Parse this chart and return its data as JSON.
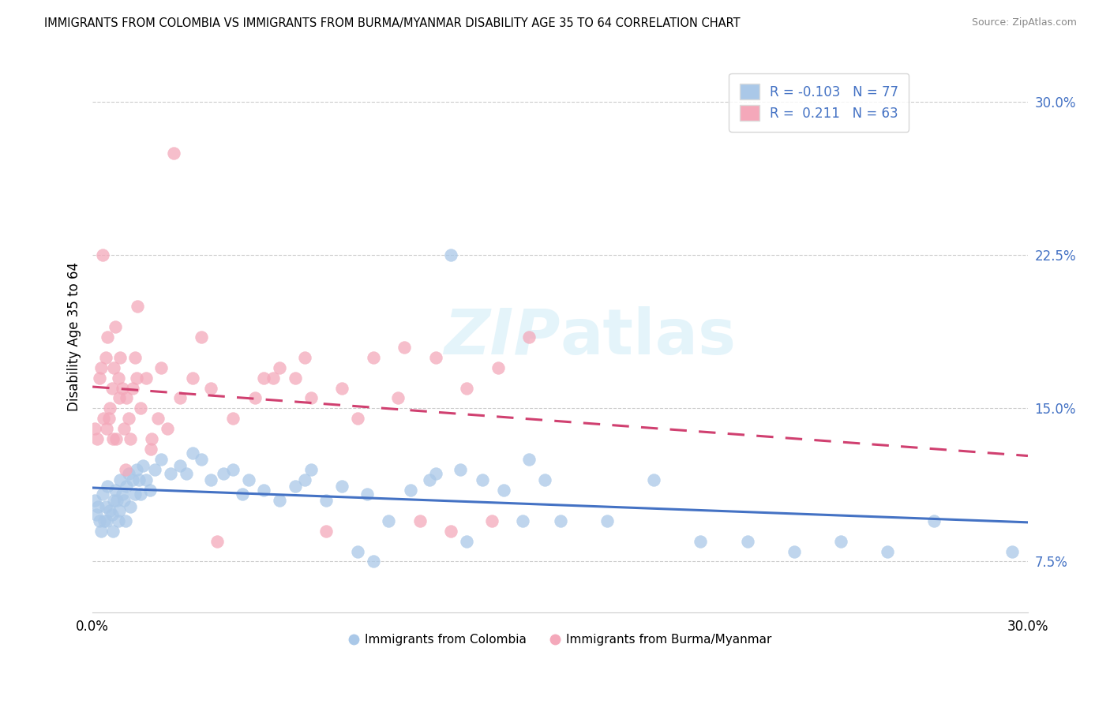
{
  "title": "IMMIGRANTS FROM COLOMBIA VS IMMIGRANTS FROM BURMA/MYANMAR DISABILITY AGE 35 TO 64 CORRELATION CHART",
  "source": "Source: ZipAtlas.com",
  "ylabel": "Disability Age 35 to 64",
  "xlim": [
    0.0,
    30.0
  ],
  "ylim": [
    5.0,
    32.0
  ],
  "yticks": [
    7.5,
    15.0,
    22.5,
    30.0
  ],
  "ytick_labels": [
    "7.5%",
    "15.0%",
    "22.5%",
    "30.0%"
  ],
  "xtick_labels": [
    "0.0%",
    "30.0%"
  ],
  "legend_label_blue": "Immigrants from Colombia",
  "legend_label_pink": "Immigrants from Burma/Myanmar",
  "R_blue": -0.103,
  "N_blue": 77,
  "R_pink": 0.211,
  "N_pink": 63,
  "color_blue": "#aac8e8",
  "color_pink": "#f4a8ba",
  "line_color_blue": "#4472c4",
  "line_color_pink": "#d04070",
  "accent_color": "#4472c4",
  "watermark_top": "ZIP",
  "watermark_bot": "atlas",
  "blue_x": [
    0.08,
    0.12,
    0.18,
    0.22,
    0.28,
    0.32,
    0.38,
    0.42,
    0.48,
    0.55,
    0.62,
    0.68,
    0.72,
    0.78,
    0.82,
    0.88,
    0.95,
    1.02,
    1.08,
    1.15,
    1.22,
    1.28,
    1.35,
    1.42,
    1.48,
    1.55,
    1.62,
    1.72,
    1.85,
    2.0,
    2.2,
    2.5,
    2.8,
    3.2,
    3.8,
    4.2,
    4.8,
    5.5,
    6.0,
    6.8,
    7.5,
    8.0,
    8.8,
    9.5,
    10.2,
    11.0,
    11.8,
    12.5,
    13.2,
    14.0,
    15.0,
    16.5,
    18.0,
    19.5,
    21.0,
    22.5,
    24.0,
    25.5,
    27.0,
    29.5,
    0.45,
    0.65,
    0.85,
    1.05,
    3.5,
    5.0,
    7.0,
    9.0,
    10.8,
    12.0,
    13.8,
    3.0,
    4.5,
    6.5,
    8.5,
    11.5,
    14.5
  ],
  "blue_y": [
    10.5,
    9.8,
    10.2,
    9.5,
    9.0,
    10.8,
    9.5,
    10.2,
    11.2,
    10.0,
    9.8,
    10.5,
    11.0,
    10.5,
    9.5,
    11.5,
    10.8,
    10.5,
    11.2,
    11.8,
    10.2,
    11.5,
    10.8,
    12.0,
    11.5,
    10.8,
    12.2,
    11.5,
    11.0,
    12.0,
    12.5,
    11.8,
    12.2,
    12.8,
    11.5,
    11.8,
    10.8,
    11.0,
    10.5,
    11.5,
    10.5,
    11.2,
    10.8,
    9.5,
    11.0,
    11.8,
    12.0,
    11.5,
    11.0,
    12.5,
    9.5,
    9.5,
    11.5,
    8.5,
    8.5,
    8.0,
    8.5,
    8.0,
    9.5,
    8.0,
    9.5,
    9.0,
    10.0,
    9.5,
    12.5,
    11.5,
    12.0,
    7.5,
    11.5,
    8.5,
    9.5,
    11.8,
    12.0,
    11.2,
    8.0,
    22.5,
    11.5
  ],
  "pink_x": [
    0.08,
    0.15,
    0.22,
    0.28,
    0.35,
    0.42,
    0.48,
    0.55,
    0.62,
    0.68,
    0.75,
    0.82,
    0.88,
    0.95,
    1.02,
    1.08,
    1.15,
    1.22,
    1.28,
    1.35,
    1.42,
    1.55,
    1.72,
    1.88,
    2.1,
    2.4,
    2.8,
    3.2,
    3.8,
    4.5,
    5.2,
    6.0,
    7.0,
    8.0,
    9.0,
    10.0,
    11.0,
    12.0,
    13.0,
    14.0,
    0.45,
    0.65,
    0.85,
    1.05,
    2.2,
    3.5,
    5.5,
    6.8,
    8.5,
    9.8,
    11.5,
    12.8,
    1.9,
    0.32,
    0.72,
    1.45,
    2.6,
    4.0,
    5.8,
    7.5,
    10.5,
    6.5,
    0.52
  ],
  "pink_y": [
    14.0,
    13.5,
    16.5,
    17.0,
    14.5,
    17.5,
    18.5,
    15.0,
    16.0,
    17.0,
    13.5,
    16.5,
    17.5,
    16.0,
    14.0,
    15.5,
    14.5,
    13.5,
    16.0,
    17.5,
    16.5,
    15.0,
    16.5,
    13.0,
    14.5,
    14.0,
    15.5,
    16.5,
    16.0,
    14.5,
    15.5,
    17.0,
    15.5,
    16.0,
    17.5,
    18.0,
    17.5,
    16.0,
    17.0,
    18.5,
    14.0,
    13.5,
    15.5,
    12.0,
    17.0,
    18.5,
    16.5,
    17.5,
    14.5,
    15.5,
    9.0,
    9.5,
    13.5,
    22.5,
    19.0,
    20.0,
    27.5,
    8.5,
    16.5,
    9.0,
    9.5,
    16.5,
    14.5
  ]
}
